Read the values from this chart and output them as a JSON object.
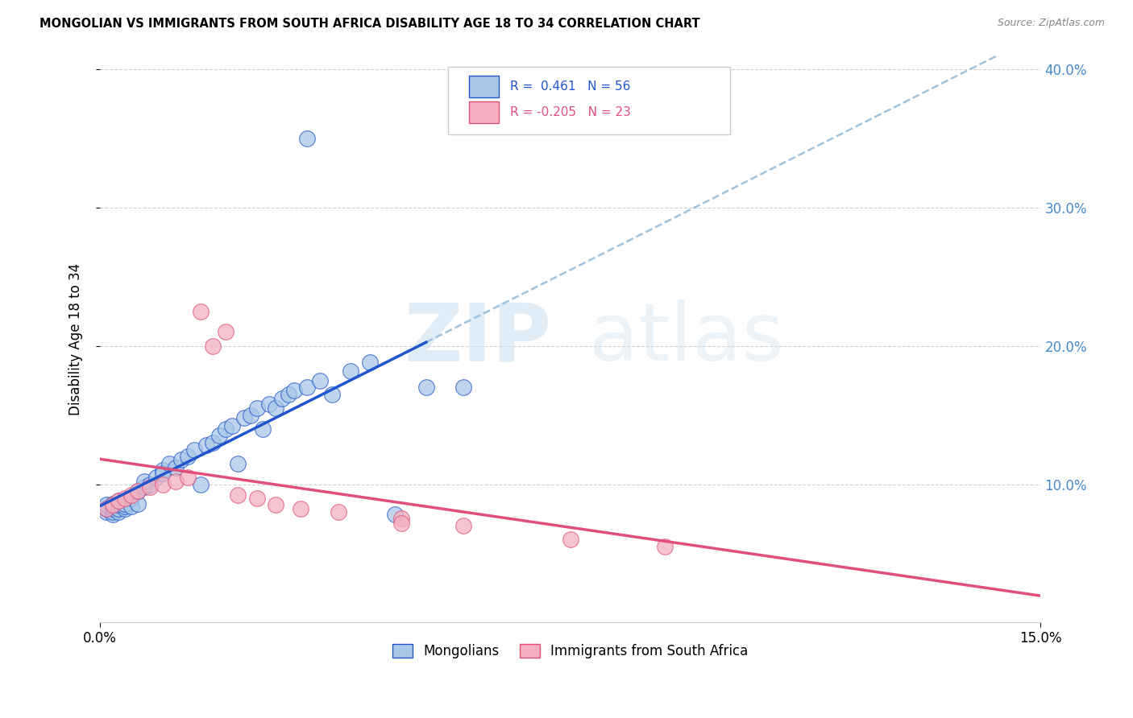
{
  "title": "MONGOLIAN VS IMMIGRANTS FROM SOUTH AFRICA DISABILITY AGE 18 TO 34 CORRELATION CHART",
  "source": "Source: ZipAtlas.com",
  "ylabel": "Disability Age 18 to 34",
  "r_mongolian": 0.461,
  "n_mongolian": 56,
  "r_south_africa": -0.205,
  "n_south_africa": 23,
  "xmin": 0.0,
  "xmax": 0.15,
  "ymin": 0.0,
  "ymax": 0.41,
  "yticks": [
    0.1,
    0.2,
    0.3,
    0.4
  ],
  "color_mongolian": "#a8c8e8",
  "color_south_africa": "#f4b0c0",
  "line_color_mongolian": "#2255cc",
  "line_color_south_africa": "#e0507a",
  "line_color_dashed": "#90b8d8",
  "right_tick_color": "#4488cc",
  "background_color": "#ffffff",
  "watermark_zip": "ZIP",
  "watermark_atlas": "atlas",
  "mongolian_x": [
    0.001,
    0.001,
    0.001,
    0.001,
    0.002,
    0.002,
    0.002,
    0.002,
    0.002,
    0.003,
    0.003,
    0.003,
    0.003,
    0.004,
    0.004,
    0.004,
    0.005,
    0.005,
    0.006,
    0.006,
    0.007,
    0.007,
    0.008,
    0.009,
    0.01,
    0.01,
    0.011,
    0.012,
    0.013,
    0.014,
    0.015,
    0.016,
    0.017,
    0.018,
    0.019,
    0.02,
    0.021,
    0.022,
    0.023,
    0.024,
    0.025,
    0.026,
    0.027,
    0.028,
    0.029,
    0.03,
    0.031,
    0.033,
    0.035,
    0.037,
    0.04,
    0.043,
    0.047,
    0.052,
    0.058,
    0.033
  ],
  "mongolian_y": [
    0.08,
    0.082,
    0.083,
    0.085,
    0.078,
    0.08,
    0.082,
    0.084,
    0.086,
    0.08,
    0.082,
    0.085,
    0.088,
    0.082,
    0.084,
    0.086,
    0.084,
    0.09,
    0.086,
    0.095,
    0.098,
    0.102,
    0.1,
    0.105,
    0.11,
    0.108,
    0.115,
    0.112,
    0.118,
    0.12,
    0.125,
    0.1,
    0.128,
    0.13,
    0.135,
    0.14,
    0.142,
    0.115,
    0.148,
    0.15,
    0.155,
    0.14,
    0.158,
    0.155,
    0.162,
    0.165,
    0.168,
    0.17,
    0.175,
    0.165,
    0.182,
    0.188,
    0.078,
    0.17,
    0.17,
    0.35
  ],
  "south_africa_x": [
    0.001,
    0.002,
    0.003,
    0.004,
    0.005,
    0.006,
    0.008,
    0.01,
    0.012,
    0.014,
    0.016,
    0.018,
    0.02,
    0.022,
    0.025,
    0.028,
    0.032,
    0.038,
    0.048,
    0.048,
    0.058,
    0.075,
    0.09
  ],
  "south_africa_y": [
    0.082,
    0.085,
    0.088,
    0.09,
    0.092,
    0.095,
    0.098,
    0.1,
    0.102,
    0.105,
    0.225,
    0.2,
    0.21,
    0.092,
    0.09,
    0.085,
    0.082,
    0.08,
    0.075,
    0.072,
    0.07,
    0.06,
    0.055
  ]
}
